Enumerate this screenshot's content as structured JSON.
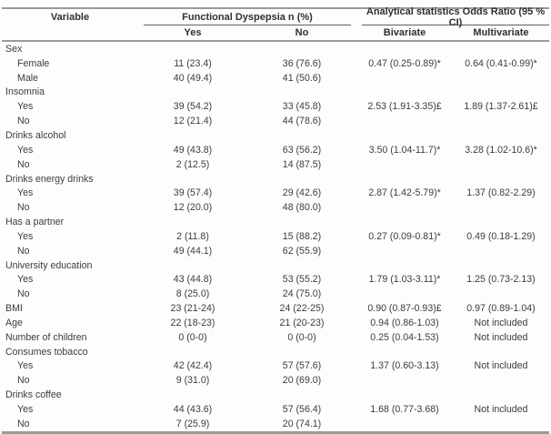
{
  "table": {
    "header": {
      "variable": "Variable",
      "group1": "Functional Dyspepsia n (%)",
      "group2": "Analytical statistics Odds Ratio (95 % CI)",
      "sub": [
        "Yes",
        "No",
        "Bivariate",
        "Multivariate"
      ]
    },
    "rows": [
      {
        "label": "Sex",
        "indent": false,
        "cells": [
          "",
          "",
          "",
          ""
        ]
      },
      {
        "label": "Female",
        "indent": true,
        "cells": [
          "11 (23.4)",
          "36 (76.6)",
          "0.47 (0.25-0.89)*",
          "0.64 (0.41-0.99)*"
        ]
      },
      {
        "label": "Male",
        "indent": true,
        "cells": [
          "40 (49.4)",
          "41 (50.6)",
          "",
          ""
        ]
      },
      {
        "label": "Insomnia",
        "indent": false,
        "cells": [
          "",
          "",
          "",
          ""
        ]
      },
      {
        "label": "Yes",
        "indent": true,
        "cells": [
          "39 (54.2)",
          "33 (45.8)",
          "2.53 (1.91-3.35)£",
          "1.89 (1.37-2.61)£"
        ]
      },
      {
        "label": "No",
        "indent": true,
        "cells": [
          "12 (21.4)",
          "44 (78.6)",
          "",
          ""
        ]
      },
      {
        "label": "Drinks alcohol",
        "indent": false,
        "cells": [
          "",
          "",
          "",
          ""
        ]
      },
      {
        "label": "Yes",
        "indent": true,
        "cells": [
          "49 (43.8)",
          "63 (56.2)",
          "3.50 (1.04-11.7)*",
          "3.28 (1.02-10.6)*"
        ]
      },
      {
        "label": "No",
        "indent": true,
        "cells": [
          "2 (12.5)",
          "14 (87.5)",
          "",
          ""
        ]
      },
      {
        "label": "Drinks energy drinks",
        "indent": false,
        "cells": [
          "",
          "",
          "",
          ""
        ]
      },
      {
        "label": "Yes",
        "indent": true,
        "cells": [
          "39 (57.4)",
          "29 (42.6)",
          "2.87 (1.42-5.79)*",
          "1.37 (0.82-2.29)"
        ]
      },
      {
        "label": "No",
        "indent": true,
        "cells": [
          "12 (20.0)",
          "48 (80.0)",
          "",
          ""
        ]
      },
      {
        "label": "Has a partner",
        "indent": false,
        "cells": [
          "",
          "",
          "",
          ""
        ]
      },
      {
        "label": "Yes",
        "indent": true,
        "cells": [
          "2 (11.8)",
          "15 (88.2)",
          "0.27 (0.09-0.81)*",
          "0.49 (0.18-1.29)"
        ]
      },
      {
        "label": "No",
        "indent": true,
        "cells": [
          "49 (44.1)",
          "62 (55.9)",
          "",
          ""
        ]
      },
      {
        "label": "University education",
        "indent": false,
        "cells": [
          "",
          "",
          "",
          ""
        ]
      },
      {
        "label": "Yes",
        "indent": true,
        "cells": [
          "43 (44.8)",
          "53 (55.2)",
          "1.79 (1.03-3.11)*",
          "1.25 (0.73-2.13)"
        ]
      },
      {
        "label": "No",
        "indent": true,
        "cells": [
          "8 (25.0)",
          "24 (75.0)",
          "",
          ""
        ]
      },
      {
        "label": "BMI",
        "indent": false,
        "cells": [
          "23 (21-24)",
          "24 (22-25)",
          "0.90 (0.87-0.93)£",
          "0.97 (0.89-1.04)"
        ]
      },
      {
        "label": "Age",
        "indent": false,
        "cells": [
          "22 (18-23)",
          "21 (20-23)",
          "0.94 (0.86-1.03)",
          "Not included"
        ]
      },
      {
        "label": "Number of children",
        "indent": false,
        "cells": [
          "0 (0-0)",
          "0 (0-0)",
          "0.25 (0.04-1.53)",
          "Not included"
        ]
      },
      {
        "label": "Consumes tobacco",
        "indent": false,
        "cells": [
          "",
          "",
          "",
          ""
        ]
      },
      {
        "label": "Yes",
        "indent": true,
        "cells": [
          "42 (42.4)",
          "57 (57.6)",
          "1.37 (0.60-3.13)",
          "Not included"
        ]
      },
      {
        "label": "No",
        "indent": true,
        "cells": [
          "9 (31.0)",
          "20 (69.0)",
          "",
          ""
        ]
      },
      {
        "label": "Drinks coffee",
        "indent": false,
        "cells": [
          "",
          "",
          "",
          ""
        ]
      },
      {
        "label": "Yes",
        "indent": true,
        "cells": [
          "44 (43.6)",
          "57 (56.4)",
          "1.68 (0.77-3.68)",
          "Not included"
        ]
      },
      {
        "label": "No",
        "indent": true,
        "cells": [
          "7 (25.9)",
          "20 (74.1)",
          "",
          ""
        ]
      }
    ]
  }
}
